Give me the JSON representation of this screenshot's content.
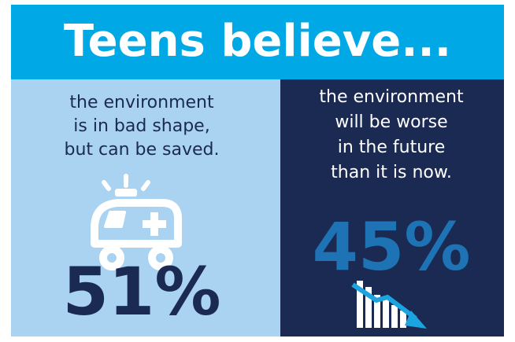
{
  "header": {
    "title": "Teens believe..."
  },
  "panels": [
    {
      "lines": [
        "the environment",
        "is in bad shape,",
        "but can be saved."
      ],
      "stat": "51%"
    },
    {
      "lines": [
        "the environment",
        "will be worse",
        "in the future",
        "than it is now."
      ],
      "stat": "45%"
    }
  ]
}
